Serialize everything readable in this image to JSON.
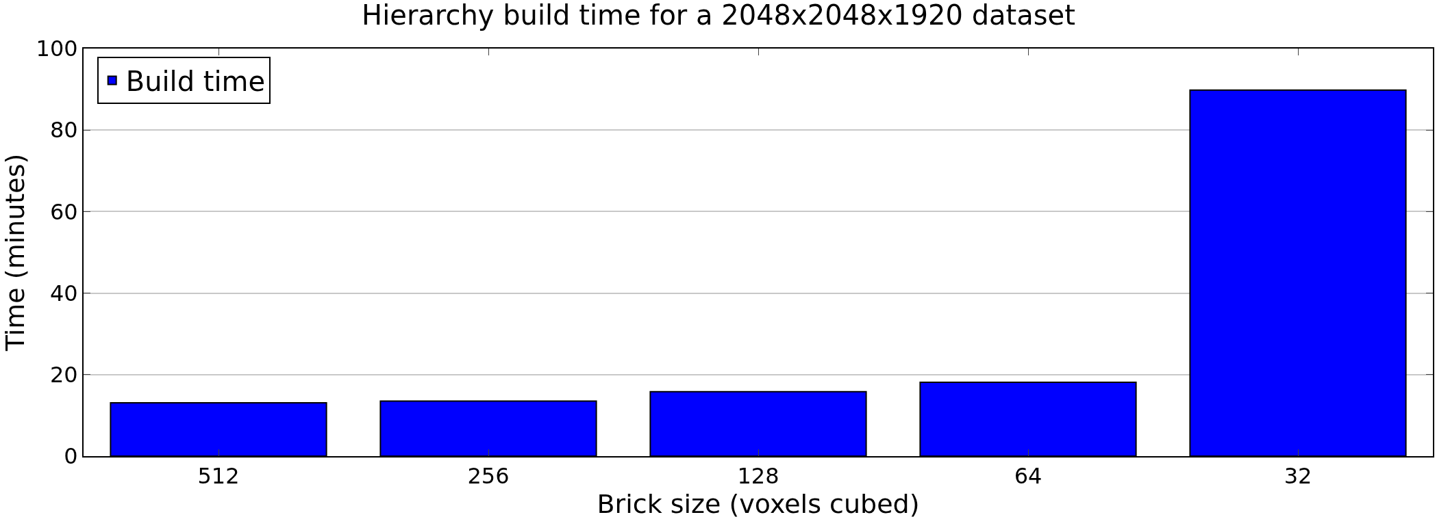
{
  "chart_data": {
    "type": "bar",
    "title": "Hierarchy build time for a 2048x2048x1920 dataset",
    "xlabel": "Brick size (voxels cubed)",
    "ylabel": "Time (minutes)",
    "categories": [
      "512",
      "256",
      "128",
      "64",
      "32"
    ],
    "series": [
      {
        "name": "Build time",
        "color": "#0000ff",
        "values": [
          13.1,
          13.5,
          15.8,
          18.1,
          89.8
        ]
      }
    ],
    "ylim": [
      0,
      100
    ],
    "yticks": [
      0,
      20,
      40,
      60,
      80,
      100
    ],
    "grid": "y",
    "legend": "top left"
  }
}
